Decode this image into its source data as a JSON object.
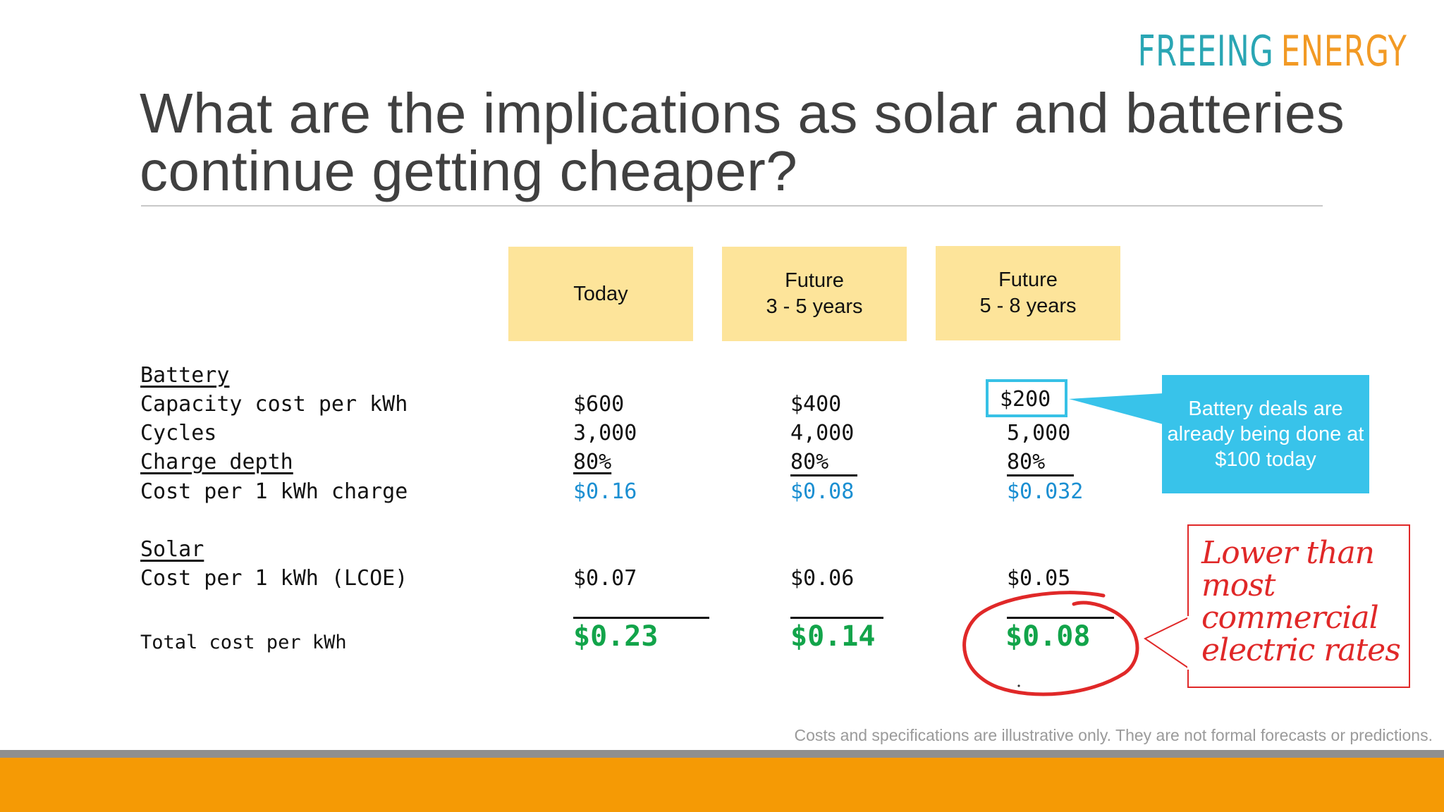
{
  "logo": {
    "word1": "FREEING",
    "word2": "ENERGY"
  },
  "title": "What are the implications as solar and batteries continue getting cheaper?",
  "columns": [
    {
      "line1": "Today",
      "line2": ""
    },
    {
      "line1": "Future",
      "line2": "3 - 5 years"
    },
    {
      "line1": "Future",
      "line2": "5 - 8 years"
    }
  ],
  "battery": {
    "heading": "Battery",
    "rows": [
      {
        "label": "Capacity cost per kWh",
        "values": [
          "$600",
          "$400",
          "$200"
        ]
      },
      {
        "label": "Cycles",
        "values": [
          "3,000",
          "4,000",
          "5,000"
        ]
      },
      {
        "label": "Charge depth",
        "values": [
          "80%",
          "80%",
          "80%"
        ]
      },
      {
        "label": "Cost per 1 kWh charge",
        "values": [
          "$0.16",
          "$0.08",
          "$0.032"
        ]
      }
    ]
  },
  "solar": {
    "heading": "Solar",
    "rows": [
      {
        "label": "Cost per 1 kWh (LCOE)",
        "values": [
          "$0.07",
          "$0.06",
          "$0.05"
        ]
      }
    ]
  },
  "total": {
    "label": "Total cost per kWh",
    "values": [
      "$0.23",
      "$0.14",
      "$0.08"
    ]
  },
  "callout": "Battery deals are already being done at $100 today",
  "note": "Lower than most commercial electric rates",
  "disclaimer": "Costs and specifications are illustrative only. They are not formal forecasts or predictions.",
  "colors": {
    "accent_orange": "#f59a05",
    "callout_blue": "#38c3ea",
    "highlight_yellow": "#fde49a",
    "total_green": "#12a44a",
    "note_red": "#e02828"
  }
}
